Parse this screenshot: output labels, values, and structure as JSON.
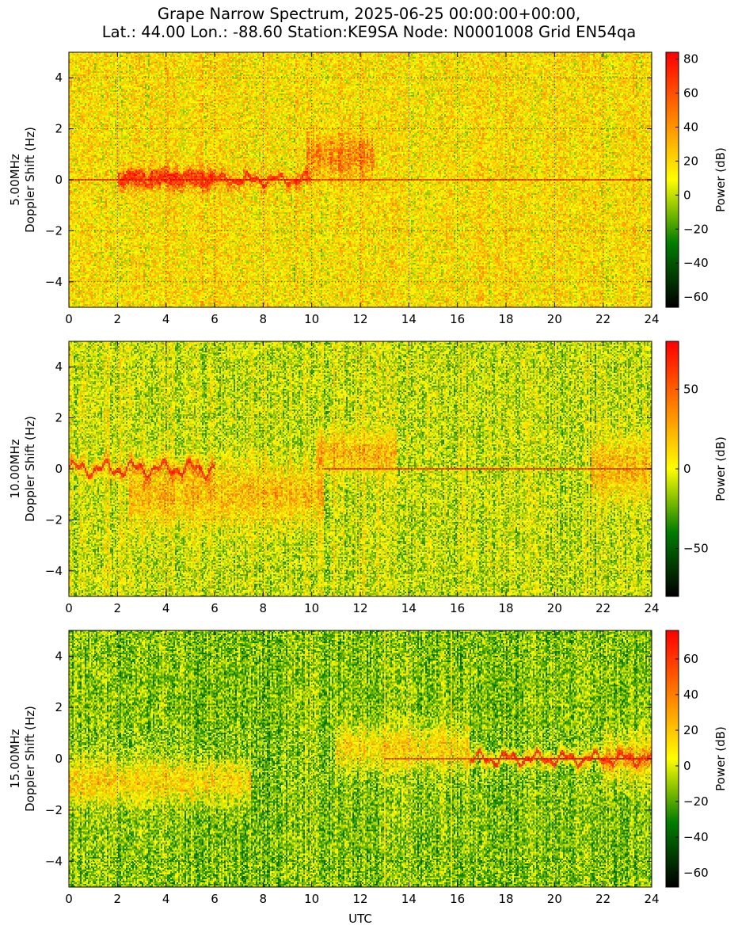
{
  "title": {
    "line1": "Grape Narrow Spectrum, 2025-06-25 00:00:00+00:00,",
    "line2": "Lat.: 44.00 Lon.: -88.60 Station:KE9SA Node: N0001008 Grid EN54qa"
  },
  "colors": {
    "cmap": [
      "#000000",
      "#007d00",
      "#ffff00",
      "#ff7f00",
      "#ff0000"
    ],
    "gridline": "#000000"
  },
  "chart_data": [
    {
      "type": "heatmap",
      "title": "",
      "ylabel_line1": "5.00MHz",
      "ylabel_line2": "Doppler Shift (Hz)",
      "xlabel": "",
      "xlim": [
        0,
        24
      ],
      "ylim": [
        -5,
        5
      ],
      "xticks": [
        "0",
        "2",
        "4",
        "6",
        "8",
        "10",
        "12",
        "14",
        "16",
        "18",
        "20",
        "22",
        "24"
      ],
      "yticks": [
        "4",
        "2",
        "0",
        "−2",
        "−4"
      ],
      "colorbar": {
        "label": "Power (dB)",
        "range": [
          -66,
          84
        ],
        "ticks": [
          "80",
          "60",
          "40",
          "20",
          "0",
          "−20",
          "−40",
          "−60"
        ]
      },
      "grid": true,
      "features": {
        "background_level": 0.55,
        "carrier_line": {
          "doppler": 0.0,
          "from_hour": 0,
          "to_hour": 24
        },
        "wander_trace": {
          "from_hour": 2.0,
          "to_hour": 10.0,
          "amplitude_hz": 0.25
        },
        "spread": [
          {
            "from_hour": 2.0,
            "to_hour": 6.0,
            "center": 0.1,
            "width": 0.6
          },
          {
            "from_hour": 9.8,
            "to_hour": 12.6,
            "center": 0.9,
            "width": 1.2
          }
        ]
      }
    },
    {
      "type": "heatmap",
      "title": "",
      "ylabel_line1": "10.00MHz",
      "ylabel_line2": "Doppler Shift (Hz)",
      "xlabel": "",
      "xlim": [
        0,
        24
      ],
      "ylim": [
        -5,
        5
      ],
      "xticks": [
        "0",
        "2",
        "4",
        "6",
        "8",
        "10",
        "12",
        "14",
        "16",
        "18",
        "20",
        "22",
        "24"
      ],
      "yticks": [
        "4",
        "2",
        "0",
        "−2",
        "−4"
      ],
      "colorbar": {
        "label": "Power (dB)",
        "range": [
          -80,
          80
        ],
        "ticks": [
          "50",
          "0",
          "−50"
        ]
      },
      "grid": true,
      "features": {
        "background_level": 0.45,
        "carrier_line": {
          "doppler": 0.0,
          "from_hour": 10.5,
          "to_hour": 24
        },
        "wander_trace": {
          "from_hour": 0.0,
          "to_hour": 6.0,
          "amplitude_hz": 0.35
        },
        "spread": [
          {
            "from_hour": 2.5,
            "to_hour": 10.5,
            "center": -1.0,
            "width": 1.6
          },
          {
            "from_hour": 10.2,
            "to_hour": 13.5,
            "center": 0.6,
            "width": 1.1
          },
          {
            "from_hour": 21.5,
            "to_hour": 24.0,
            "center": 0.0,
            "width": 1.6
          }
        ]
      }
    },
    {
      "type": "heatmap",
      "title": "",
      "ylabel_line1": "15.00MHz",
      "ylabel_line2": "Doppler Shift (Hz)",
      "xlabel": "UTC",
      "xlim": [
        0,
        24
      ],
      "ylim": [
        -5,
        5
      ],
      "xticks": [
        "0",
        "2",
        "4",
        "6",
        "8",
        "10",
        "12",
        "14",
        "16",
        "18",
        "20",
        "22",
        "24"
      ],
      "yticks": [
        "4",
        "2",
        "0",
        "−2",
        "−4"
      ],
      "colorbar": {
        "label": "Power (dB)",
        "range": [
          -68,
          76
        ],
        "ticks": [
          "60",
          "40",
          "20",
          "0",
          "−20",
          "−40",
          "−60"
        ]
      },
      "grid": true,
      "features": {
        "background_level": 0.38,
        "carrier_line": {
          "doppler": 0.0,
          "from_hour": 13.0,
          "to_hour": 24
        },
        "wander_trace": {
          "from_hour": 16.5,
          "to_hour": 24.0,
          "amplitude_hz": 0.3
        },
        "spread": [
          {
            "from_hour": 0.0,
            "to_hour": 7.5,
            "center": -0.9,
            "width": 1.2
          },
          {
            "from_hour": 11.0,
            "to_hour": 16.5,
            "center": 0.4,
            "width": 1.2
          },
          {
            "from_hour": 22.0,
            "to_hour": 24.0,
            "center": 0.0,
            "width": 1.4
          }
        ]
      }
    }
  ]
}
